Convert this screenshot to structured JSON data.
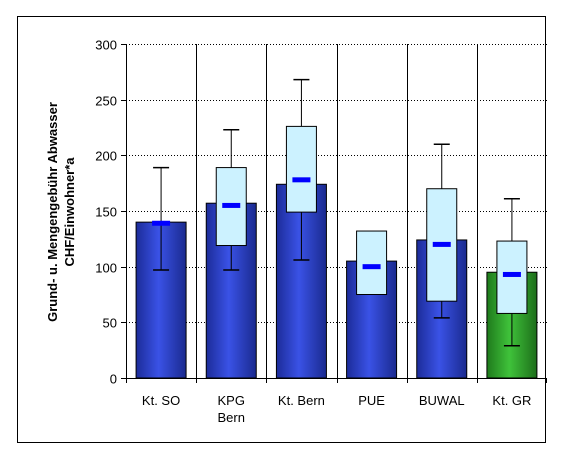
{
  "chart_data": {
    "type": "bar",
    "title": "",
    "ylabel_line1": "Grund- u. Mengengebühr  Abwasser",
    "ylabel_line2": "CHF/Einwohner*a",
    "xlabel": "",
    "ylim": [
      0,
      300
    ],
    "yticks": [
      "0",
      "50",
      "100",
      "150",
      "200",
      "250",
      "300"
    ],
    "grid": "horizontal-dotted",
    "categories": [
      [
        "Kt. SO"
      ],
      [
        "KPG",
        "Bern"
      ],
      [
        "Kt. Bern"
      ],
      [
        "PUE"
      ],
      [
        "BUWAL"
      ],
      [
        "Kt. GR"
      ]
    ],
    "bar_values": [
      140,
      157,
      174,
      105,
      124,
      95
    ],
    "bar_colors": [
      "#2a3fbf",
      "#2a3fbf",
      "#2a3fbf",
      "#2a3fbf",
      "#2a3fbf",
      "#2f9a2a"
    ],
    "box_low": [
      null,
      119,
      149,
      75,
      69,
      58
    ],
    "box_high": [
      null,
      189,
      226,
      132,
      170,
      123
    ],
    "mean": [
      139,
      155,
      178,
      100,
      120,
      93
    ],
    "whisker_low": [
      97,
      97,
      106,
      null,
      54,
      29
    ],
    "whisker_high": [
      189,
      223,
      268,
      null,
      210,
      161
    ],
    "colors": {
      "box_fill": "#ccf2ff",
      "mean_marker": "#0000ff",
      "grid": "#000000"
    }
  }
}
